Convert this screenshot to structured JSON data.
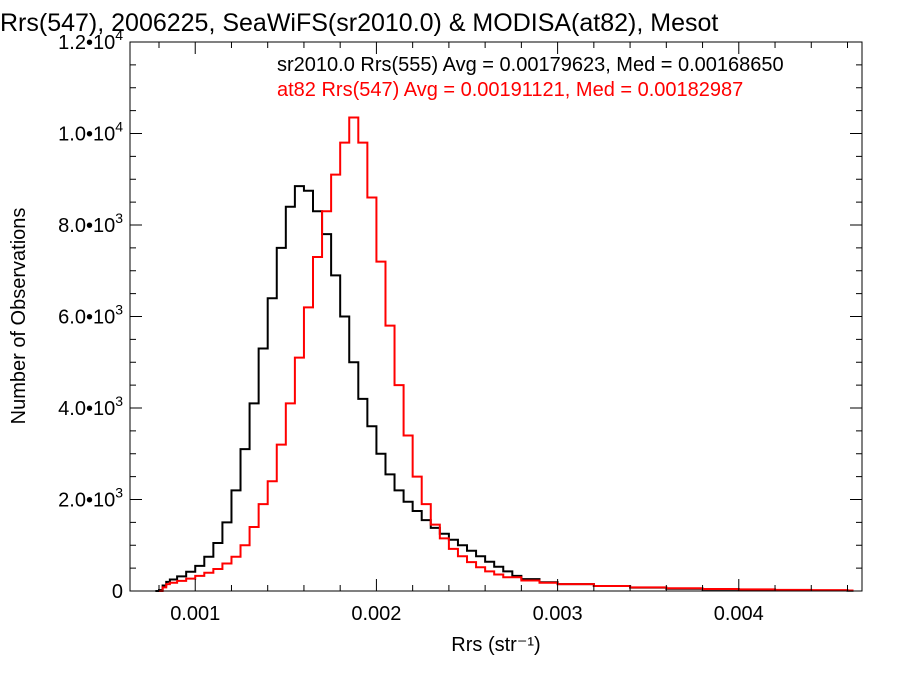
{
  "chart_data": {
    "type": "line",
    "title": "Rrs(547), 2006225, SeaWiFS(sr2010.0) & MODISA(at82), Mesot",
    "xlabel": "Rrs (str⁻¹)",
    "ylabel": "Number of Observations",
    "xlim": [
      0.00064,
      0.00468
    ],
    "ylim": [
      0,
      12000
    ],
    "x_ticks": [
      0.001,
      0.002,
      0.003,
      0.004
    ],
    "x_tick_labels": [
      "0.001",
      "0.002",
      "0.003",
      "0.004"
    ],
    "y_ticks": [
      0,
      2000,
      4000,
      6000,
      8000,
      10000,
      12000
    ],
    "y_tick_labels": [
      {
        "mant": "0",
        "exp": ""
      },
      {
        "mant": "2.0•10",
        "exp": "3"
      },
      {
        "mant": "4.0•10",
        "exp": "3"
      },
      {
        "mant": "6.0•10",
        "exp": "3"
      },
      {
        "mant": "8.0•10",
        "exp": "3"
      },
      {
        "mant": "1.0•10",
        "exp": "4"
      },
      {
        "mant": "1.2•10",
        "exp": "4"
      }
    ],
    "grid": false,
    "step": true,
    "series": [
      {
        "legend": "sr2010.0 Rrs(555) Avg = 0.00179623, Med = 0.00168650",
        "color": "#000000",
        "points": [
          [
            0.00078,
            0
          ],
          [
            0.0008,
            20
          ],
          [
            0.00082,
            120
          ],
          [
            0.00084,
            200
          ],
          [
            0.00086,
            250
          ],
          [
            0.0009,
            320
          ],
          [
            0.00095,
            420
          ],
          [
            0.001,
            550
          ],
          [
            0.00105,
            750
          ],
          [
            0.0011,
            1050
          ],
          [
            0.00115,
            1500
          ],
          [
            0.0012,
            2200
          ],
          [
            0.00125,
            3100
          ],
          [
            0.0013,
            4100
          ],
          [
            0.00135,
            5300
          ],
          [
            0.0014,
            6400
          ],
          [
            0.00145,
            7500
          ],
          [
            0.0015,
            8400
          ],
          [
            0.00155,
            8850
          ],
          [
            0.0016,
            8750
          ],
          [
            0.00165,
            8300
          ],
          [
            0.0017,
            7800
          ],
          [
            0.00175,
            6900
          ],
          [
            0.0018,
            6000
          ],
          [
            0.00185,
            5000
          ],
          [
            0.0019,
            4200
          ],
          [
            0.00195,
            3600
          ],
          [
            0.002,
            3000
          ],
          [
            0.00205,
            2550
          ],
          [
            0.0021,
            2200
          ],
          [
            0.00215,
            1950
          ],
          [
            0.0022,
            1750
          ],
          [
            0.00225,
            1550
          ],
          [
            0.0023,
            1380
          ],
          [
            0.00235,
            1250
          ],
          [
            0.0024,
            1120
          ],
          [
            0.00245,
            1000
          ],
          [
            0.0025,
            880
          ],
          [
            0.00255,
            760
          ],
          [
            0.0026,
            640
          ],
          [
            0.00265,
            530
          ],
          [
            0.0027,
            430
          ],
          [
            0.00275,
            330
          ],
          [
            0.0028,
            260
          ],
          [
            0.0029,
            190
          ],
          [
            0.003,
            150
          ],
          [
            0.0032,
            110
          ],
          [
            0.0034,
            75
          ],
          [
            0.0036,
            50
          ],
          [
            0.0038,
            35
          ],
          [
            0.004,
            25
          ],
          [
            0.0042,
            15
          ],
          [
            0.0044,
            10
          ],
          [
            0.0046,
            5
          ]
        ]
      },
      {
        "legend": "at82 Rrs(547) Avg = 0.00191121, Med = 0.00182987",
        "color": "#ff0000",
        "points": [
          [
            0.0008,
            0
          ],
          [
            0.00082,
            80
          ],
          [
            0.00084,
            150
          ],
          [
            0.00086,
            180
          ],
          [
            0.0009,
            220
          ],
          [
            0.00095,
            270
          ],
          [
            0.001,
            330
          ],
          [
            0.00105,
            400
          ],
          [
            0.0011,
            480
          ],
          [
            0.00115,
            600
          ],
          [
            0.0012,
            750
          ],
          [
            0.00125,
            1000
          ],
          [
            0.0013,
            1400
          ],
          [
            0.00135,
            1900
          ],
          [
            0.0014,
            2400
          ],
          [
            0.00145,
            3200
          ],
          [
            0.0015,
            4100
          ],
          [
            0.00155,
            5100
          ],
          [
            0.0016,
            6200
          ],
          [
            0.00165,
            7300
          ],
          [
            0.0017,
            8300
          ],
          [
            0.00175,
            9100
          ],
          [
            0.0018,
            9800
          ],
          [
            0.00185,
            10350
          ],
          [
            0.0019,
            9800
          ],
          [
            0.00195,
            8600
          ],
          [
            0.002,
            7200
          ],
          [
            0.00205,
            5800
          ],
          [
            0.0021,
            4500
          ],
          [
            0.00215,
            3400
          ],
          [
            0.0022,
            2500
          ],
          [
            0.00225,
            1900
          ],
          [
            0.0023,
            1450
          ],
          [
            0.00235,
            1150
          ],
          [
            0.0024,
            920
          ],
          [
            0.00245,
            760
          ],
          [
            0.0025,
            630
          ],
          [
            0.00255,
            520
          ],
          [
            0.0026,
            430
          ],
          [
            0.00265,
            360
          ],
          [
            0.0027,
            300
          ],
          [
            0.0028,
            230
          ],
          [
            0.0029,
            180
          ],
          [
            0.003,
            150
          ],
          [
            0.0032,
            110
          ],
          [
            0.0034,
            80
          ],
          [
            0.0036,
            60
          ],
          [
            0.0038,
            45
          ],
          [
            0.004,
            35
          ],
          [
            0.0042,
            25
          ],
          [
            0.0044,
            18
          ],
          [
            0.0046,
            10
          ]
        ]
      }
    ]
  }
}
